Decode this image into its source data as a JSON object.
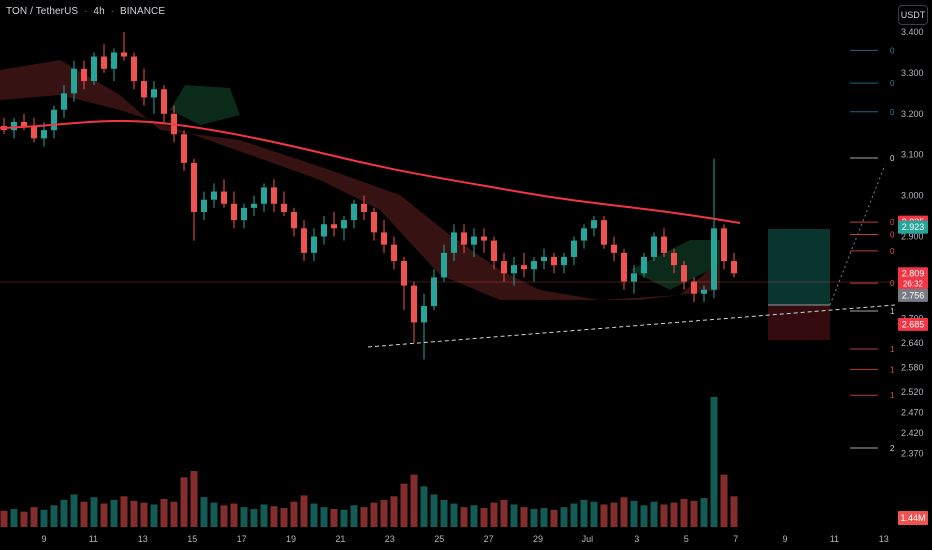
{
  "header": {
    "symbol": "TON",
    "pair": "TetherUS",
    "interval": "4h",
    "exchange": "BINANCE",
    "quote_unit": "USDT"
  },
  "colors": {
    "up": "#26a69a",
    "down": "#ef5350",
    "ma": "#f23645",
    "background": "#000000",
    "axis_text": "#b2b5be",
    "target_zone": "#0b3b33",
    "stop_zone": "#3a0d12",
    "cloud_red": "#3d1414",
    "cloud_green": "#0c2a1a"
  },
  "chart_data": {
    "type": "candlestick",
    "y_axis": {
      "ticks": [
        "3.400",
        "3.300",
        "3.200",
        "3.100",
        "3.000",
        "2.900",
        "2.700",
        "2.640",
        "2.580",
        "2.520",
        "2.470",
        "2.420",
        "2.370"
      ],
      "tick_values": [
        3.4,
        3.3,
        3.2,
        3.1,
        3.0,
        2.9,
        2.7,
        2.64,
        2.58,
        2.52,
        2.47,
        2.42,
        2.37
      ]
    },
    "x_axis": {
      "ticks": [
        "9",
        "11",
        "13",
        "15",
        "17",
        "19",
        "21",
        "23",
        "25",
        "27",
        "29",
        "Jul",
        "3",
        "5",
        "7",
        "9",
        "11",
        "13"
      ]
    },
    "price_labels": [
      {
        "value": "2.935",
        "price": 2.935,
        "color": "#f23645"
      },
      {
        "value": "2.923",
        "price": 2.923,
        "color": "#26a69a"
      },
      {
        "value": "2.809",
        "sub": "26:32",
        "price": 2.809,
        "color": "#f23645"
      },
      {
        "value": "2.756",
        "price": 2.756,
        "color": "#787b86"
      },
      {
        "value": "2.685",
        "price": 2.685,
        "color": "#f23645"
      }
    ],
    "volume_label": "1.44M",
    "fib_labels": [
      {
        "text": "0",
        "price": 3.355,
        "color": "#2a7fa0"
      },
      {
        "text": "0",
        "price": 3.275,
        "color": "#2a7fa0"
      },
      {
        "text": "0",
        "price": 3.205,
        "color": "#2a7fa0"
      },
      {
        "text": "0",
        "price": 3.092,
        "color": "#d1d4dc"
      },
      {
        "text": "0",
        "price": 2.935,
        "color": "#e0524a"
      },
      {
        "text": "0",
        "price": 2.905,
        "color": "#e0524a"
      },
      {
        "text": "0",
        "price": 2.865,
        "color": "#e0524a"
      },
      {
        "text": "0",
        "price": 2.786,
        "color": "#e0524a"
      },
      {
        "text": "1",
        "price": 2.718,
        "color": "#d1d4dc"
      },
      {
        "text": "1",
        "price": 2.625,
        "color": "#e0524a"
      },
      {
        "text": "1",
        "price": 2.575,
        "color": "#e0524a"
      },
      {
        "text": "1",
        "price": 2.512,
        "color": "#e0524a"
      },
      {
        "text": "2",
        "price": 2.383,
        "color": "#d1d4dc"
      }
    ],
    "candles": [
      [
        3.17,
        3.19,
        3.15,
        3.16
      ],
      [
        3.16,
        3.19,
        3.14,
        3.18
      ],
      [
        3.18,
        3.2,
        3.16,
        3.17
      ],
      [
        3.17,
        3.19,
        3.13,
        3.14
      ],
      [
        3.14,
        3.18,
        3.12,
        3.16
      ],
      [
        3.16,
        3.22,
        3.14,
        3.21
      ],
      [
        3.21,
        3.27,
        3.19,
        3.25
      ],
      [
        3.25,
        3.33,
        3.23,
        3.31
      ],
      [
        3.31,
        3.33,
        3.26,
        3.28
      ],
      [
        3.28,
        3.35,
        3.27,
        3.34
      ],
      [
        3.34,
        3.37,
        3.3,
        3.31
      ],
      [
        3.31,
        3.36,
        3.28,
        3.35
      ],
      [
        3.35,
        3.4,
        3.33,
        3.34
      ],
      [
        3.34,
        3.35,
        3.26,
        3.28
      ],
      [
        3.28,
        3.31,
        3.22,
        3.24
      ],
      [
        3.24,
        3.28,
        3.2,
        3.26
      ],
      [
        3.26,
        3.27,
        3.18,
        3.2
      ],
      [
        3.2,
        3.22,
        3.13,
        3.15
      ],
      [
        3.15,
        3.16,
        3.06,
        3.08
      ],
      [
        3.08,
        3.09,
        2.89,
        2.96
      ],
      [
        2.96,
        3.01,
        2.94,
        2.99
      ],
      [
        2.99,
        3.03,
        2.97,
        3.01
      ],
      [
        3.01,
        3.04,
        2.97,
        2.98
      ],
      [
        2.98,
        3.01,
        2.92,
        2.94
      ],
      [
        2.94,
        2.98,
        2.92,
        2.97
      ],
      [
        2.97,
        3.0,
        2.95,
        2.98
      ],
      [
        2.98,
        3.03,
        2.96,
        3.02
      ],
      [
        3.02,
        3.04,
        2.96,
        2.98
      ],
      [
        2.98,
        3.01,
        2.95,
        2.96
      ],
      [
        2.96,
        2.97,
        2.9,
        2.92
      ],
      [
        2.92,
        2.94,
        2.84,
        2.86
      ],
      [
        2.86,
        2.92,
        2.84,
        2.9
      ],
      [
        2.9,
        2.95,
        2.88,
        2.93
      ],
      [
        2.93,
        2.96,
        2.9,
        2.92
      ],
      [
        2.92,
        2.95,
        2.89,
        2.94
      ],
      [
        2.94,
        2.99,
        2.92,
        2.98
      ],
      [
        2.98,
        3.0,
        2.94,
        2.96
      ],
      [
        2.96,
        2.97,
        2.89,
        2.91
      ],
      [
        2.91,
        2.94,
        2.86,
        2.88
      ],
      [
        2.88,
        2.9,
        2.82,
        2.84
      ],
      [
        2.84,
        2.85,
        2.72,
        2.78
      ],
      [
        2.78,
        2.79,
        2.64,
        2.69
      ],
      [
        2.69,
        2.76,
        2.6,
        2.73
      ],
      [
        2.73,
        2.82,
        2.72,
        2.8
      ],
      [
        2.8,
        2.88,
        2.79,
        2.86
      ],
      [
        2.86,
        2.93,
        2.84,
        2.91
      ],
      [
        2.91,
        2.93,
        2.86,
        2.88
      ],
      [
        2.88,
        2.92,
        2.85,
        2.9
      ],
      [
        2.9,
        2.92,
        2.86,
        2.89
      ],
      [
        2.89,
        2.9,
        2.82,
        2.84
      ],
      [
        2.84,
        2.86,
        2.79,
        2.81
      ],
      [
        2.81,
        2.85,
        2.78,
        2.83
      ],
      [
        2.83,
        2.86,
        2.8,
        2.82
      ],
      [
        2.82,
        2.85,
        2.79,
        2.84
      ],
      [
        2.84,
        2.87,
        2.82,
        2.85
      ],
      [
        2.85,
        2.86,
        2.81,
        2.83
      ],
      [
        2.83,
        2.86,
        2.81,
        2.85
      ],
      [
        2.85,
        2.9,
        2.83,
        2.89
      ],
      [
        2.89,
        2.93,
        2.87,
        2.92
      ],
      [
        2.92,
        2.95,
        2.9,
        2.94
      ],
      [
        2.94,
        2.95,
        2.87,
        2.88
      ],
      [
        2.88,
        2.9,
        2.84,
        2.86
      ],
      [
        2.86,
        2.87,
        2.77,
        2.79
      ],
      [
        2.79,
        2.83,
        2.76,
        2.81
      ],
      [
        2.81,
        2.86,
        2.8,
        2.85
      ],
      [
        2.85,
        2.91,
        2.84,
        2.9
      ],
      [
        2.9,
        2.92,
        2.85,
        2.86
      ],
      [
        2.86,
        2.87,
        2.81,
        2.83
      ],
      [
        2.83,
        2.84,
        2.77,
        2.79
      ],
      [
        2.79,
        2.8,
        2.74,
        2.76
      ],
      [
        2.76,
        2.78,
        2.74,
        2.77
      ],
      [
        2.77,
        3.09,
        2.75,
        2.92
      ],
      [
        2.92,
        2.93,
        2.82,
        2.84
      ],
      [
        2.84,
        2.86,
        2.8,
        2.81
      ]
    ],
    "volumes": [
      0.18,
      0.2,
      0.17,
      0.22,
      0.19,
      0.24,
      0.3,
      0.36,
      0.28,
      0.33,
      0.26,
      0.3,
      0.34,
      0.29,
      0.27,
      0.25,
      0.31,
      0.28,
      0.55,
      0.62,
      0.33,
      0.27,
      0.24,
      0.26,
      0.22,
      0.2,
      0.25,
      0.23,
      0.21,
      0.28,
      0.35,
      0.26,
      0.22,
      0.2,
      0.19,
      0.24,
      0.22,
      0.27,
      0.3,
      0.34,
      0.48,
      0.58,
      0.45,
      0.36,
      0.3,
      0.26,
      0.22,
      0.24,
      0.21,
      0.27,
      0.3,
      0.25,
      0.22,
      0.2,
      0.21,
      0.19,
      0.22,
      0.26,
      0.3,
      0.28,
      0.25,
      0.27,
      0.33,
      0.29,
      0.24,
      0.28,
      0.25,
      0.27,
      0.31,
      0.29,
      0.32,
      1.44,
      0.58,
      0.34
    ]
  }
}
